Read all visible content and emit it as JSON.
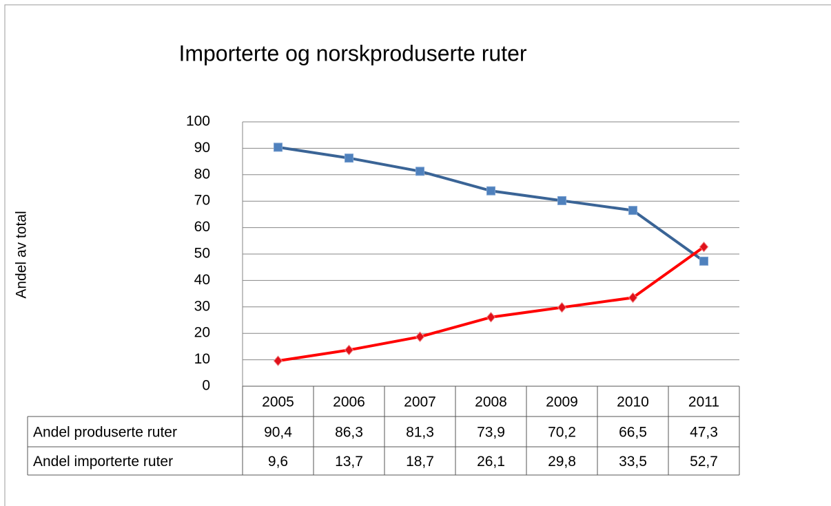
{
  "chart_data": {
    "type": "line",
    "title": "Importerte og norskproduserte ruter",
    "y_label": "Andel av total",
    "categories": [
      "2005",
      "2006",
      "2007",
      "2008",
      "2009",
      "2010",
      "2011"
    ],
    "series": [
      {
        "name": "Andel produserte ruter",
        "color": "#3a6496",
        "marker_color": "#4f81bd",
        "marker": "square",
        "values": [
          90.4,
          86.3,
          81.3,
          73.9,
          70.2,
          66.5,
          47.3
        ],
        "value_labels": [
          "90,4",
          "86,3",
          "81,3",
          "73,9",
          "70,2",
          "66,5",
          "47,3"
        ]
      },
      {
        "name": "Andel importerte ruter",
        "color": "#ff0000",
        "marker_color": "#e0101a",
        "marker": "diamond",
        "values": [
          9.6,
          13.7,
          18.7,
          26.1,
          29.8,
          33.5,
          52.7
        ],
        "value_labels": [
          "9,6",
          "13,7",
          "18,7",
          "26,1",
          "29,8",
          "33,5",
          "52,7"
        ]
      }
    ],
    "ylim": [
      0,
      100
    ],
    "yticks": [
      0,
      10,
      20,
      30,
      40,
      50,
      60,
      70,
      80,
      90,
      100
    ],
    "grid": true
  }
}
